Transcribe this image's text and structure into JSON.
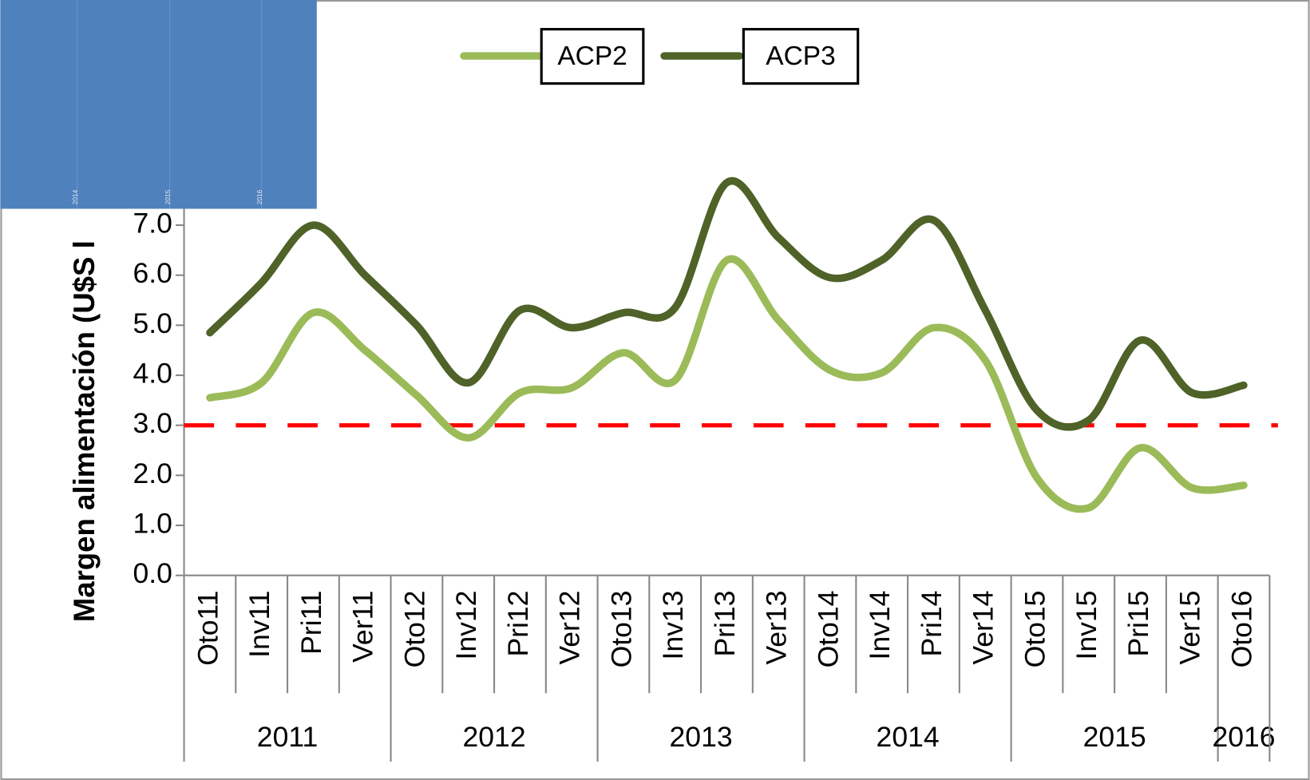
{
  "chart_data": {
    "type": "line",
    "y_axis_label": "Margen alimentación (U$S l",
    "categories": [
      "Oto11",
      "Inv11",
      "Pri11",
      "Ver11",
      "Oto12",
      "Inv12",
      "Pri12",
      "Ver12",
      "Oto13",
      "Inv13",
      "Pri13",
      "Ver13",
      "Oto14",
      "Inv14",
      "Pri14",
      "Ver14",
      "Oto15",
      "Inv15",
      "Pri15",
      "Ver15",
      "Oto16"
    ],
    "groups": [
      {
        "label": "2011",
        "count": 4
      },
      {
        "label": "2012",
        "count": 4
      },
      {
        "label": "2013",
        "count": 4
      },
      {
        "label": "2014",
        "count": 4
      },
      {
        "label": "2015",
        "count": 4
      },
      {
        "label": "2016",
        "count": 1
      }
    ],
    "series": [
      {
        "name": "ACP2",
        "color": "#9bbb59",
        "values": [
          3.55,
          3.85,
          5.25,
          4.5,
          3.6,
          2.75,
          3.65,
          3.75,
          4.45,
          3.9,
          6.3,
          5.1,
          4.1,
          4.05,
          4.95,
          4.3,
          1.95,
          1.35,
          2.55,
          1.75,
          1.8
        ]
      },
      {
        "name": "ACP3",
        "color": "#4f6228",
        "values": [
          4.85,
          5.85,
          7.0,
          6.0,
          5.0,
          3.85,
          5.3,
          4.95,
          5.25,
          5.35,
          7.85,
          6.75,
          5.95,
          6.3,
          7.1,
          5.3,
          3.3,
          3.1,
          4.7,
          3.65,
          3.8
        ]
      }
    ],
    "reference_line": {
      "value": 3.0,
      "color": "#ff0000"
    },
    "ylim": [
      0,
      11.5
    ],
    "yticks": [
      {
        "value": 0,
        "label": "0.0"
      },
      {
        "value": 1,
        "label": "1.0"
      },
      {
        "value": 2,
        "label": "2.0"
      },
      {
        "value": 3,
        "label": "3.0"
      },
      {
        "value": 4,
        "label": "4.0"
      },
      {
        "value": 5,
        "label": "5.0"
      },
      {
        "value": 6,
        "label": "6.0"
      },
      {
        "value": 7,
        "label": "7.0"
      }
    ],
    "legend": "top",
    "overlay": {
      "color": "#4f81bd",
      "labels": [
        "2014",
        "2015",
        "2016"
      ]
    }
  }
}
